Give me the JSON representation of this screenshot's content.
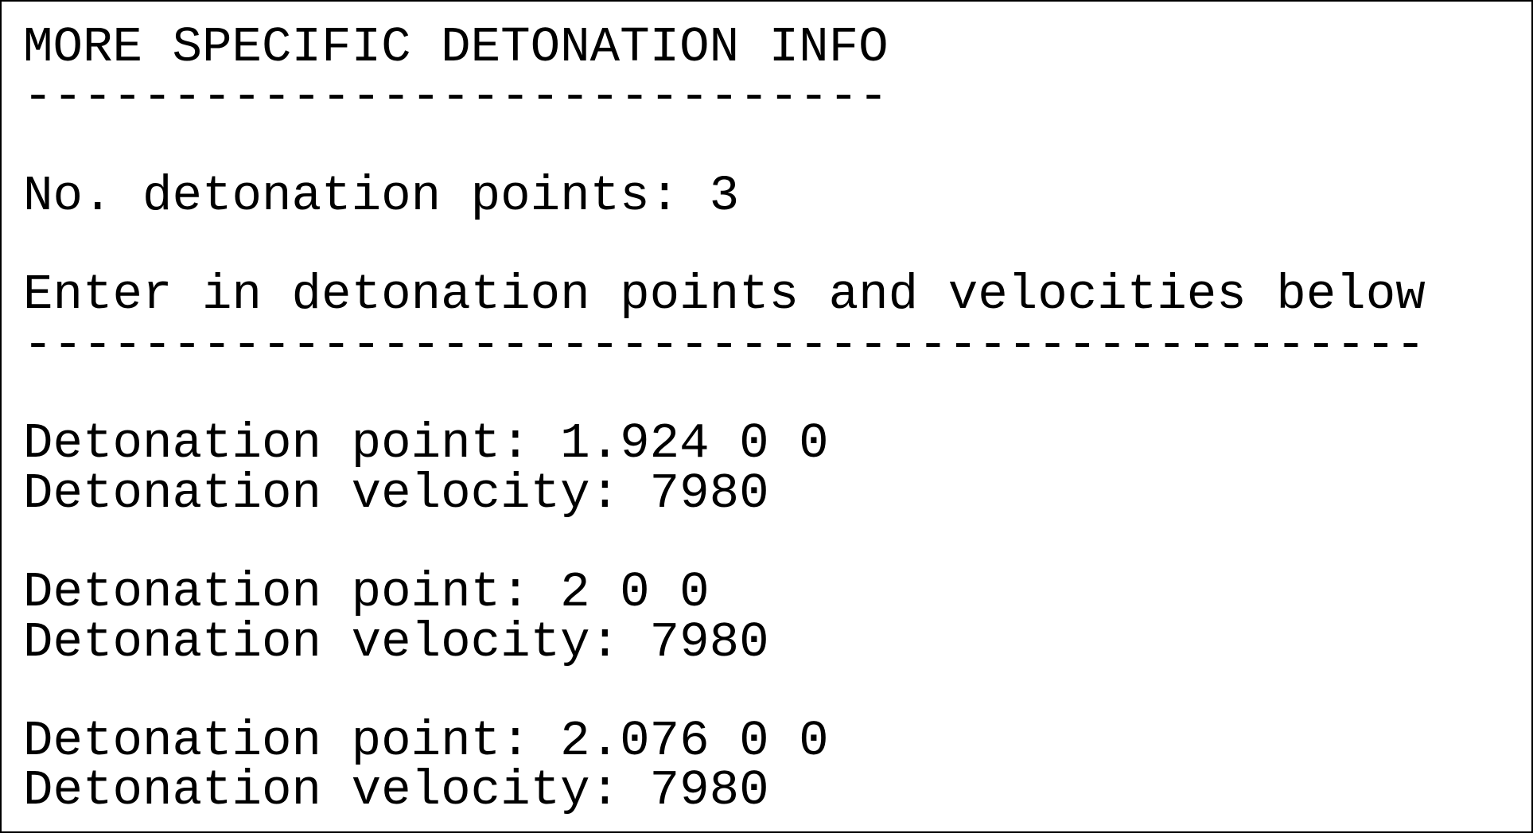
{
  "title": "MORE SPECIFIC DETONATION INFO",
  "title_rule": "-----------------------------",
  "detonation_points": "No. detonation points: 3",
  "instruction": "Enter in detonation points and velocities below",
  "instruction_rule": "-----------------------------------------------",
  "entries": [
    {
      "point": "Detonation point: 1.924 0 0",
      "velocity": "Detonation velocity: 7980"
    },
    {
      "point": "Detonation point: 2 0 0",
      "velocity": "Detonation velocity: 7980"
    },
    {
      "point": "Detonation point: 2.076 0 0",
      "velocity": "Detonation velocity: 7980"
    }
  ]
}
